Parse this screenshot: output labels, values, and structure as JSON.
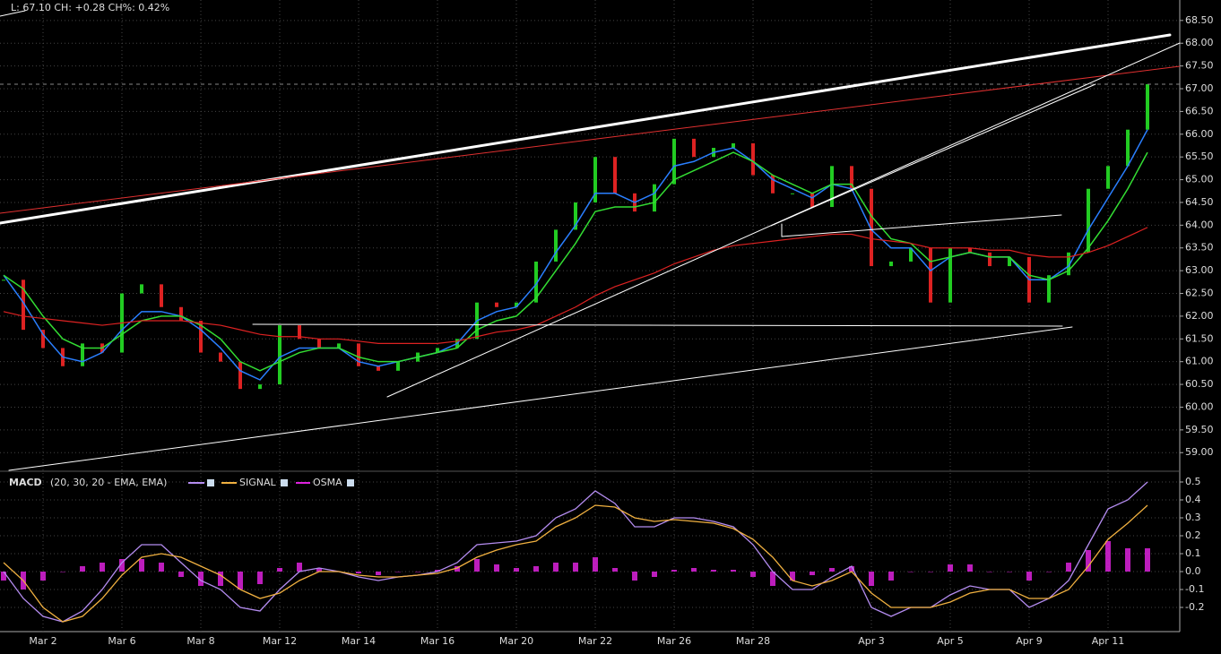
{
  "chart_data": [
    {
      "type": "candle",
      "annotation": "L: 67.10 CH: +0.28 CH%: 0.42%",
      "categories": [
        null,
        null,
        "Mar 2",
        null,
        null,
        null,
        "Mar 6",
        null,
        null,
        null,
        "Mar 8",
        null,
        null,
        null,
        "Mar 12",
        null,
        null,
        null,
        "Mar 14",
        null,
        null,
        null,
        "Mar 16",
        null,
        null,
        null,
        "Mar 20",
        null,
        null,
        null,
        "Mar 22",
        null,
        null,
        null,
        "Mar 26",
        null,
        null,
        null,
        "Mar 28",
        null,
        null,
        null,
        null,
        null,
        "Apr 3",
        null,
        null,
        null,
        "Apr 5",
        null,
        null,
        null,
        "Apr 9",
        null,
        null,
        null,
        "Apr 11",
        null,
        null
      ],
      "up_color": "#22cc22",
      "down_color": "#dd2222",
      "grid": true,
      "ylim": [
        58.67,
        68.95
      ],
      "yticks": [
        {
          "value": 59,
          "label": "59.00"
        },
        {
          "value": 59.5,
          "label": "59.50"
        },
        {
          "value": 60,
          "label": "60.00"
        },
        {
          "value": 60.5,
          "label": "60.50"
        },
        {
          "value": 61,
          "label": "61.00"
        },
        {
          "value": 61.5,
          "label": "61.50"
        },
        {
          "value": 62,
          "label": "62.00"
        },
        {
          "value": 62.5,
          "label": "62.50"
        },
        {
          "value": 63,
          "label": "63.00"
        },
        {
          "value": 63.5,
          "label": "63.50"
        },
        {
          "value": 64,
          "label": "64.00"
        },
        {
          "value": 64.5,
          "label": "64.50"
        },
        {
          "value": 65,
          "label": "65.00"
        },
        {
          "value": 65.5,
          "label": "65.50"
        },
        {
          "value": 66,
          "label": "66.00"
        },
        {
          "value": 66.5,
          "label": "66.50"
        },
        {
          "value": 67,
          "label": "67.00"
        },
        {
          "value": 67.5,
          "label": "67.50"
        },
        {
          "value": 68,
          "label": "68.00"
        },
        {
          "value": 68.5,
          "label": "68.50"
        }
      ],
      "values": [
        62.8,
        61.7,
        61.3,
        60.9,
        61.4,
        61.2,
        62.5,
        62.7,
        62.2,
        61.9,
        61.2,
        61.0,
        60.4,
        60.5,
        61.8,
        61.5,
        61.3,
        61.4,
        60.9,
        60.8,
        61.0,
        61.2,
        61.3,
        61.5,
        62.3,
        62.2,
        62.3,
        63.2,
        63.9,
        64.5,
        65.5,
        64.7,
        64.3,
        64.9,
        65.9,
        65.5,
        65.7,
        65.8,
        65.1,
        64.7,
        64.7,
        64.4,
        65.3,
        64.8,
        63.1,
        63.2,
        63.5,
        62.3,
        63.5,
        63.4,
        63.1,
        63.3,
        62.3,
        62.9,
        63.4,
        64.8,
        65.3,
        66.1,
        67.1
      ],
      "series": [
        {
          "color": "#2a7fff",
          "values": [
            62.9,
            62.3,
            61.6,
            61.1,
            61.0,
            61.2,
            61.7,
            62.1,
            62.1,
            62.0,
            61.7,
            61.3,
            60.8,
            60.6,
            61.1,
            61.3,
            61.3,
            61.3,
            61.0,
            60.9,
            61.0,
            61.1,
            61.2,
            61.4,
            61.9,
            62.1,
            62.2,
            62.7,
            63.4,
            64.0,
            64.7,
            64.7,
            64.5,
            64.7,
            65.3,
            65.4,
            65.6,
            65.7,
            65.4,
            65.0,
            64.8,
            64.6,
            64.9,
            64.8,
            63.9,
            63.5,
            63.5,
            63.0,
            63.3,
            63.4,
            63.3,
            63.3,
            62.8,
            62.8,
            63.1,
            63.9,
            64.6,
            65.3,
            66.1
          ]
        },
        {
          "color": "#33dd33",
          "values": [
            62.9,
            62.6,
            62.0,
            61.5,
            61.3,
            61.3,
            61.6,
            61.9,
            62.0,
            62.0,
            61.8,
            61.5,
            61.0,
            60.8,
            61.0,
            61.2,
            61.3,
            61.3,
            61.1,
            61.0,
            61.0,
            61.1,
            61.2,
            61.3,
            61.7,
            61.9,
            62.0,
            62.4,
            63.0,
            63.6,
            64.3,
            64.4,
            64.4,
            64.5,
            65.0,
            65.2,
            65.4,
            65.6,
            65.4,
            65.1,
            64.9,
            64.7,
            64.9,
            64.9,
            64.2,
            63.7,
            63.6,
            63.2,
            63.3,
            63.4,
            63.3,
            63.3,
            62.9,
            62.8,
            63.0,
            63.5,
            64.1,
            64.8,
            65.6
          ]
        },
        {
          "color": "#dd2222",
          "values": [
            62.1,
            62.0,
            61.95,
            61.9,
            61.85,
            61.8,
            61.85,
            61.9,
            61.9,
            61.9,
            61.85,
            61.8,
            61.7,
            61.6,
            61.55,
            61.55,
            61.5,
            61.5,
            61.45,
            61.4,
            61.4,
            61.4,
            61.4,
            61.45,
            61.55,
            61.65,
            61.7,
            61.8,
            62.0,
            62.2,
            62.45,
            62.65,
            62.8,
            62.95,
            63.15,
            63.3,
            63.45,
            63.55,
            63.6,
            63.65,
            63.7,
            63.75,
            63.8,
            63.8,
            63.7,
            63.65,
            63.6,
            63.5,
            63.5,
            63.5,
            63.45,
            63.45,
            63.35,
            63.3,
            63.3,
            63.4,
            63.55,
            63.75,
            63.95
          ]
        }
      ]
    },
    {
      "type": "macd",
      "title": "MACD",
      "subtitle": "(20, 30, 20 - EMA, EMA)",
      "grid": true,
      "ylim": [
        -0.335,
        0.54
      ],
      "yticks": [
        0.5,
        0.4,
        0.3,
        0.2,
        0.1,
        {
          "value": 0,
          "label": "0.0"
        },
        -0.1,
        -0.2
      ],
      "series": [
        {
          "color": "#b48cf0",
          "values": [
            0.0,
            -0.15,
            -0.25,
            -0.28,
            -0.22,
            -0.1,
            0.05,
            0.15,
            0.15,
            0.05,
            -0.05,
            -0.1,
            -0.2,
            -0.22,
            -0.1,
            0.0,
            0.02,
            0.0,
            -0.03,
            -0.05,
            -0.03,
            -0.02,
            0.0,
            0.05,
            0.15,
            0.16,
            0.17,
            0.2,
            0.3,
            0.35,
            0.45,
            0.38,
            0.25,
            0.25,
            0.3,
            0.3,
            0.28,
            0.25,
            0.15,
            0.0,
            -0.1,
            -0.1,
            -0.03,
            0.03,
            -0.2,
            -0.25,
            -0.2,
            -0.2,
            -0.13,
            -0.08,
            -0.1,
            -0.1,
            -0.2,
            -0.15,
            -0.05,
            0.15,
            0.35,
            0.4,
            0.5
          ]
        },
        {
          "name": "SIGNAL",
          "color": "#f0b040",
          "values": [
            0.05,
            -0.05,
            -0.2,
            -0.28,
            -0.25,
            -0.15,
            -0.02,
            0.08,
            0.1,
            0.08,
            0.03,
            -0.02,
            -0.1,
            -0.15,
            -0.12,
            -0.05,
            0.0,
            0.0,
            -0.02,
            -0.03,
            -0.03,
            -0.02,
            -0.01,
            0.02,
            0.08,
            0.12,
            0.15,
            0.17,
            0.25,
            0.3,
            0.37,
            0.36,
            0.3,
            0.28,
            0.29,
            0.28,
            0.27,
            0.24,
            0.18,
            0.08,
            -0.05,
            -0.08,
            -0.05,
            0.0,
            -0.12,
            -0.2,
            -0.2,
            -0.2,
            -0.17,
            -0.12,
            -0.1,
            -0.1,
            -0.15,
            -0.15,
            -0.1,
            0.03,
            0.18,
            0.27,
            0.37
          ]
        },
        {
          "name": "OSMA",
          "color": "#dd22dd",
          "values": [
            -0.05,
            -0.1,
            -0.05,
            0.0,
            0.03,
            0.05,
            0.07,
            0.07,
            0.05,
            -0.03,
            -0.08,
            -0.08,
            -0.1,
            -0.07,
            0.02,
            0.05,
            0.02,
            0.0,
            -0.01,
            -0.02,
            0.0,
            0.0,
            0.01,
            0.03,
            0.07,
            0.04,
            0.02,
            0.03,
            0.05,
            0.05,
            0.08,
            0.02,
            -0.05,
            -0.03,
            0.01,
            0.02,
            0.01,
            0.01,
            -0.03,
            -0.08,
            -0.05,
            -0.02,
            0.02,
            0.03,
            -0.08,
            -0.05,
            0.0,
            0.0,
            0.04,
            0.04,
            0.0,
            0.0,
            -0.05,
            0.0,
            0.05,
            0.12,
            0.17,
            0.13,
            0.13
          ]
        }
      ]
    }
  ]
}
